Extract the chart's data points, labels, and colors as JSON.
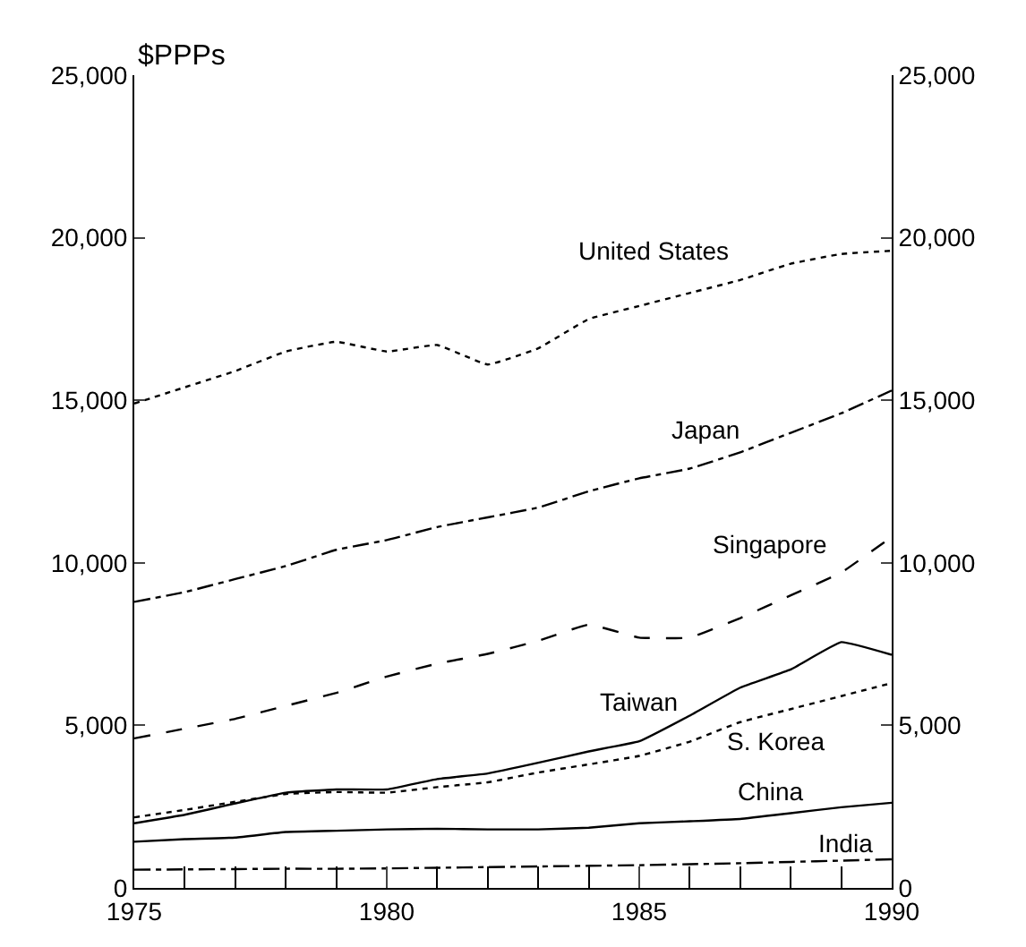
{
  "chart_data": {
    "type": "line",
    "ylabel": "$PPPs",
    "x": [
      1975,
      1976,
      1977,
      1978,
      1979,
      1980,
      1981,
      1982,
      1983,
      1984,
      1985,
      1986,
      1987,
      1988,
      1989,
      1990
    ],
    "series": [
      {
        "name": "United States",
        "color": "#000000",
        "line_style": "dotted",
        "values": [
          14900,
          15400,
          15900,
          16500,
          16800,
          16500,
          16700,
          16100,
          16600,
          17500,
          17900,
          18300,
          18700,
          19200,
          19500,
          19600
        ]
      },
      {
        "name": "Japan",
        "color": "#000000",
        "line_style": "dashdot",
        "values": [
          8800,
          9100,
          9500,
          9900,
          10400,
          10700,
          11100,
          11400,
          11700,
          12200,
          12600,
          12900,
          13400,
          14000,
          14600,
          15300
        ]
      },
      {
        "name": "Singapore",
        "color": "#000000",
        "line_style": "dashed",
        "values": [
          4600,
          4900,
          5200,
          5600,
          6000,
          6500,
          6900,
          7200,
          7600,
          8100,
          7700,
          7700,
          8300,
          9000,
          9700,
          10800
        ]
      },
      {
        "name": "Taiwan",
        "color": "#000000",
        "line_style": "solid",
        "values": [
          1990,
          2250,
          2600,
          2930,
          3030,
          3030,
          3350,
          3520,
          3850,
          4200,
          4510,
          5300,
          6160,
          6720,
          7560,
          7170
        ]
      },
      {
        "name": "S. Korea",
        "color": "#000000",
        "line_style": "dotted",
        "values": [
          2170,
          2400,
          2650,
          2890,
          2950,
          2930,
          3100,
          3250,
          3550,
          3800,
          4060,
          4500,
          5100,
          5500,
          5900,
          6300
        ]
      },
      {
        "name": "China",
        "color": "#000000",
        "line_style": "solid",
        "values": [
          1420,
          1500,
          1550,
          1720,
          1760,
          1800,
          1820,
          1800,
          1800,
          1850,
          1990,
          2050,
          2120,
          2300,
          2480,
          2620
        ]
      },
      {
        "name": "India",
        "color": "#000000",
        "line_style": "dashdot",
        "values": [
          560,
          570,
          580,
          590,
          590,
          600,
          620,
          640,
          660,
          680,
          700,
          730,
          760,
          800,
          840,
          880
        ]
      }
    ],
    "xlim": [
      1975,
      1990
    ],
    "xticks": [
      1975,
      1980,
      1985,
      1990
    ],
    "ylim": [
      0,
      25000
    ],
    "yticks": [
      {
        "value": 0,
        "label": "0"
      },
      {
        "value": 5000,
        "label": "5,000"
      },
      {
        "value": 10000,
        "label": "10,000"
      },
      {
        "value": 15000,
        "label": "15,000"
      },
      {
        "value": 20000,
        "label": "20,000"
      },
      {
        "value": 25000,
        "label": "25,000"
      }
    ],
    "y2lim": [
      0,
      25000
    ],
    "y2ticks": [
      {
        "value": 0,
        "label": "0"
      },
      {
        "value": 5000,
        "label": "5,000"
      },
      {
        "value": 10000,
        "label": "10,000"
      },
      {
        "value": 15000,
        "label": "15,000"
      },
      {
        "value": 20000,
        "label": "20,000"
      },
      {
        "value": 25000,
        "label": "25,000"
      }
    ],
    "legend": false
  }
}
